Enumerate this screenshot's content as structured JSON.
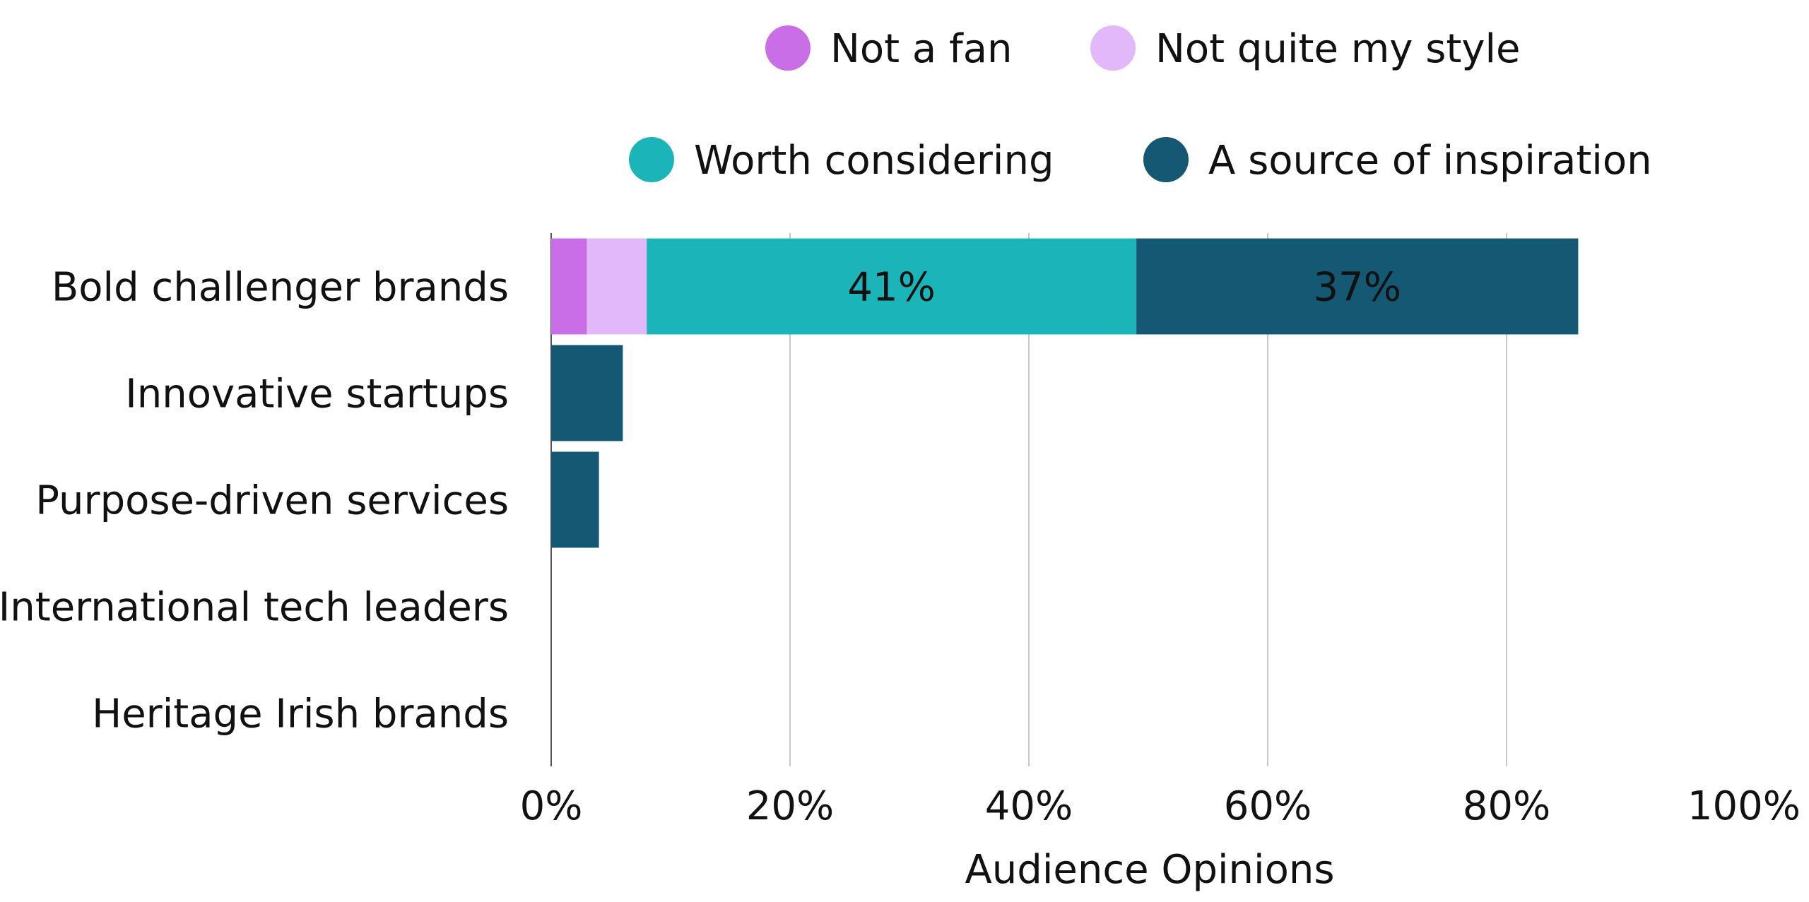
{
  "chart_data": {
    "type": "bar",
    "orientation": "horizontal",
    "stacked": true,
    "title": "",
    "xlabel": "Audience Opinions",
    "ylabel": "",
    "xlim": [
      0,
      100
    ],
    "x_ticks": [
      "0%",
      "20%",
      "40%",
      "60%",
      "80%",
      "100%"
    ],
    "grid": "vertical",
    "legend_position": "top",
    "categories": [
      "Bold challenger brands",
      "Innovative startups",
      "Purpose-driven services",
      "International tech leaders",
      "Heritage Irish brands"
    ],
    "series": [
      {
        "name": "Not a fan",
        "color": "#c96ee6",
        "values": [
          3,
          0,
          0,
          0,
          0
        ],
        "labels": [
          "",
          "",
          "",
          "",
          ""
        ]
      },
      {
        "name": "Not quite my style",
        "color": "#e2b8fa",
        "values": [
          5,
          0,
          0,
          0,
          0
        ],
        "labels": [
          "",
          "",
          "",
          "",
          ""
        ]
      },
      {
        "name": "Worth considering",
        "color": "#1bb5b9",
        "values": [
          41,
          0,
          0,
          0,
          0
        ],
        "labels": [
          "41%",
          "",
          "",
          "",
          ""
        ]
      },
      {
        "name": "A source of inspiration",
        "color": "#145873",
        "values": [
          37,
          6,
          4,
          0,
          0
        ],
        "labels": [
          "37%",
          "",
          "",
          "",
          ""
        ]
      }
    ]
  }
}
